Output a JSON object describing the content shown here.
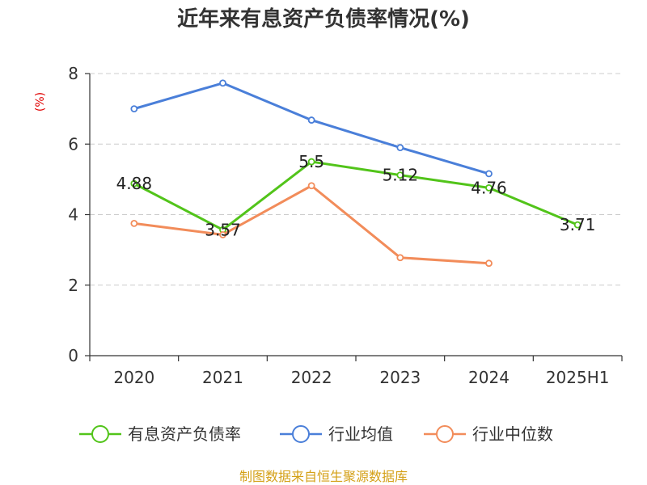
{
  "chart_data": {
    "type": "line",
    "title": "近年来有息资产负债率情况(%)",
    "ylabel": "(%)",
    "categories": [
      "2020",
      "2021",
      "2022",
      "2023",
      "2024",
      "2025H1"
    ],
    "ylim": [
      0,
      8
    ],
    "yticks": [
      "0",
      "2",
      "4",
      "6",
      "8"
    ],
    "grid": true,
    "legend_position": "bottom",
    "series": [
      {
        "name": "有息资产负债率",
        "color": "#52c41a",
        "values": [
          4.88,
          3.57,
          5.5,
          5.12,
          4.76,
          3.71
        ],
        "labels": [
          "4.88",
          "3.57",
          "5.5",
          "5.12",
          "4.76",
          "3.71"
        ]
      },
      {
        "name": "行业均值",
        "color": "#4a7fd9",
        "values": [
          7.0,
          7.73,
          6.68,
          5.9,
          5.16,
          null
        ]
      },
      {
        "name": "行业中位数",
        "color": "#f28c5a",
        "values": [
          3.75,
          3.43,
          4.82,
          2.78,
          2.62,
          null
        ]
      }
    ]
  },
  "source": "制图数据来自恒生聚源数据库"
}
